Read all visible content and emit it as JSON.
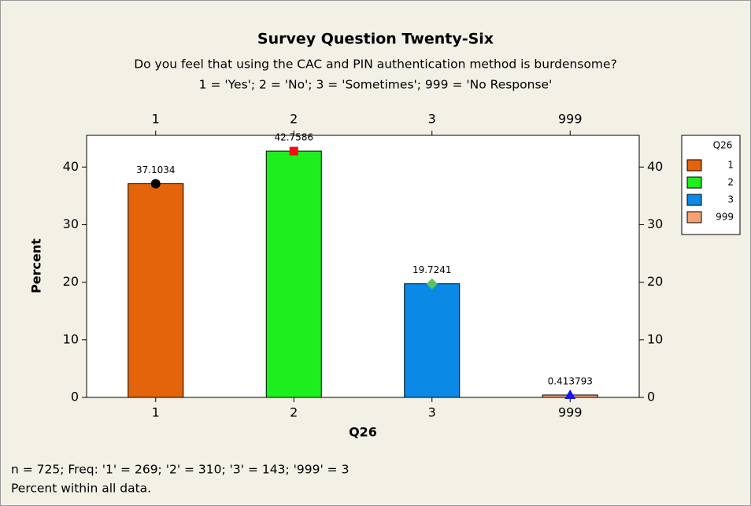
{
  "chart_data": {
    "type": "bar",
    "title": "Survey Question Twenty-Six",
    "subtitle": [
      "Do you feel that using the CAC and PIN authentication method is burdensome?",
      "1 = 'Yes'; 2 = 'No'; 3 = 'Sometimes'; 999 = 'No Response'"
    ],
    "x_label": "Q26",
    "y_label": "Percent",
    "categories": [
      "1",
      "2",
      "3",
      "999"
    ],
    "values": [
      37.1034,
      42.7586,
      19.7241,
      0.413793
    ],
    "colors": [
      "#e3640a",
      "#1eee1e",
      "#0a8ae6",
      "#f4a174"
    ],
    "markers": [
      {
        "shape": "circle",
        "color": "#000000"
      },
      {
        "shape": "square",
        "color": "#ee1111"
      },
      {
        "shape": "diamond",
        "color": "#5cc35c"
      },
      {
        "shape": "triangle",
        "color": "#1616e6"
      }
    ],
    "ylim": [
      0,
      45.5
    ],
    "yticks": [
      0,
      10,
      20,
      30,
      40
    ],
    "legend": {
      "title": "Q26",
      "position": "right"
    },
    "notes": [
      "n = 725; Freq: '1' = 269; '2' = 310; '3' = 143; '999' = 3",
      "Percent within all data."
    ]
  }
}
